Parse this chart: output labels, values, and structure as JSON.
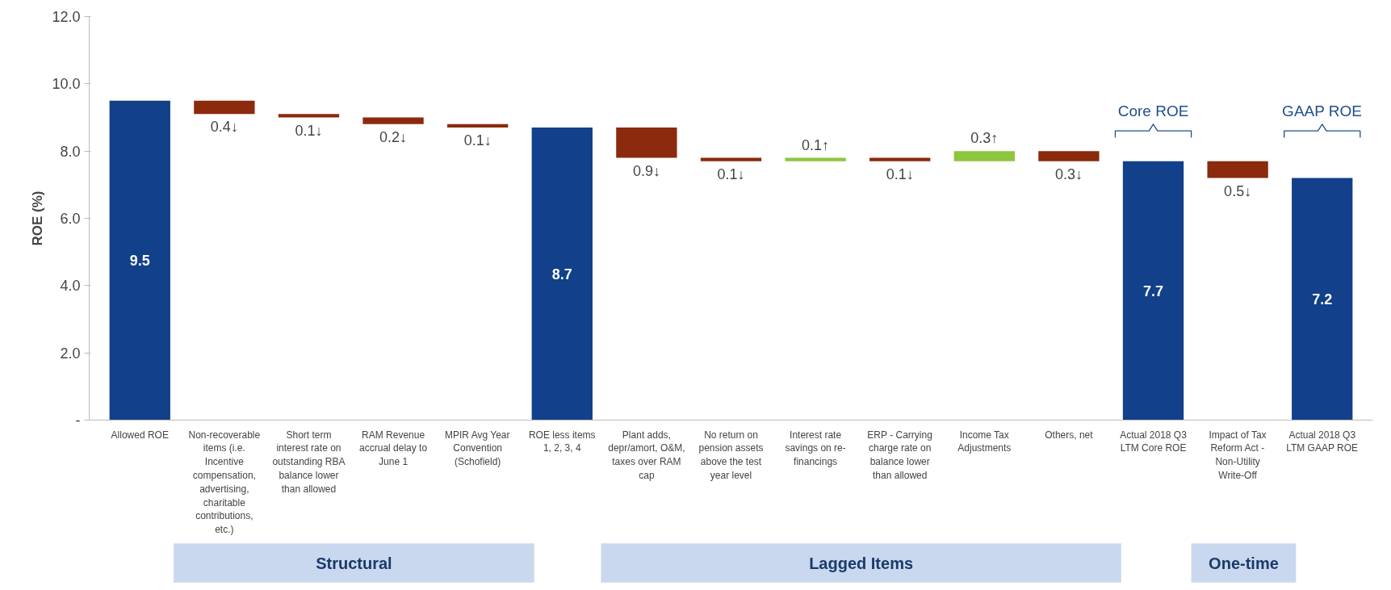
{
  "chart_data": {
    "type": "bar",
    "ylabel": "ROE (%)",
    "categories": [
      "Allowed ROE",
      "Non-recoverable items (i.e. Incentive compensation, advertising, charitable contributions, etc.)",
      "Short term interest rate on outstanding RBA balance lower than allowed",
      "RAM Revenue accrual delay to June 1",
      "MPIR Avg Year Convention (Schofield)",
      "ROE less items 1, 2, 3, 4",
      "Plant adds, depr/amort, O&M, taxes over RAM cap",
      "No return on pension assets above the test year level",
      "Interest rate savings on re-financings",
      "ERP - Carrying charge rate on balance lower than allowed",
      "Income Tax Adjustments",
      "Others, net",
      "Actual 2018 Q3 LTM Core ROE",
      "Impact of Tax Reform Act - Non-Utility Write-Off",
      "Actual 2018 Q3 LTM GAAP ROE"
    ],
    "values": [
      9.5,
      -0.4,
      -0.1,
      -0.2,
      -0.1,
      8.7,
      -0.9,
      -0.1,
      0.1,
      -0.1,
      0.3,
      -0.3,
      7.7,
      -0.5,
      7.2
    ],
    "base": [
      0,
      9.5,
      9.1,
      9.0,
      8.8,
      0,
      8.7,
      7.8,
      7.7,
      7.8,
      7.7,
      8.0,
      0,
      7.7,
      0
    ],
    "colors": [
      "#12408a",
      "#8b2a0c",
      "#8b2a0c",
      "#8b2a0c",
      "#8b2a0c",
      "#12408a",
      "#8b2a0c",
      "#8b2a0c",
      "#8dc63f",
      "#8b2a0c",
      "#8dc63f",
      "#8b2a0c",
      "#12408a",
      "#8b2a0c",
      "#12408a"
    ],
    "value_labels": [
      "9.5",
      "0.4↓",
      "0.1↓",
      "0.2↓",
      "0.1↓",
      "8.7",
      "0.9↓",
      "0.1↓",
      "0.1↑",
      "0.1↓",
      "0.3↑",
      "0.3↓",
      "7.7",
      "0.5↓",
      "7.2"
    ],
    "ylim": [
      0,
      12
    ],
    "yticks": [
      {
        "value": 0,
        "label": "-"
      },
      {
        "value": 2,
        "label": "2.0"
      },
      {
        "value": 4,
        "label": "4.0"
      },
      {
        "value": 6,
        "label": "6.0"
      },
      {
        "value": 8,
        "label": "8.0"
      },
      {
        "value": 10,
        "label": "10.0"
      },
      {
        "value": 12,
        "label": "12.0"
      }
    ],
    "annotations": [
      "Structural",
      "Lagged Items",
      "One-time",
      "Core ROE",
      "GAAP ROE"
    ]
  }
}
